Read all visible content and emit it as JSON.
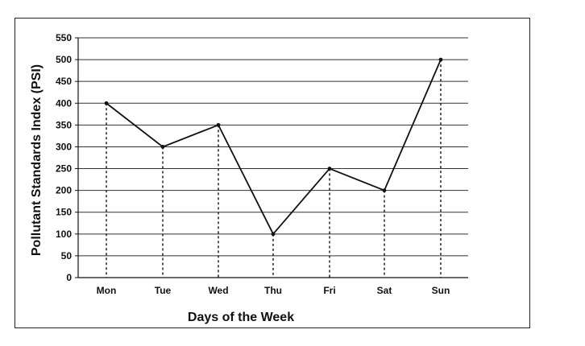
{
  "chart_data": {
    "type": "line",
    "title": "",
    "xlabel": "Days of the Week",
    "ylabel": "Pollutant Standards Index (PSI)",
    "categories": [
      "Mon",
      "Tue",
      "Wed",
      "Thu",
      "Fri",
      "Sat",
      "Sun"
    ],
    "series": [
      {
        "values": [
          400,
          300,
          350,
          100,
          250,
          200,
          500
        ]
      }
    ],
    "ylim": [
      0,
      550
    ],
    "yticks": [
      0,
      50,
      100,
      150,
      200,
      250,
      300,
      350,
      400,
      450,
      500,
      550
    ],
    "grid": "horizontal",
    "drop_lines": true,
    "colors": {
      "line": "#111111",
      "grid": "#333333",
      "frame": "#222222"
    }
  }
}
